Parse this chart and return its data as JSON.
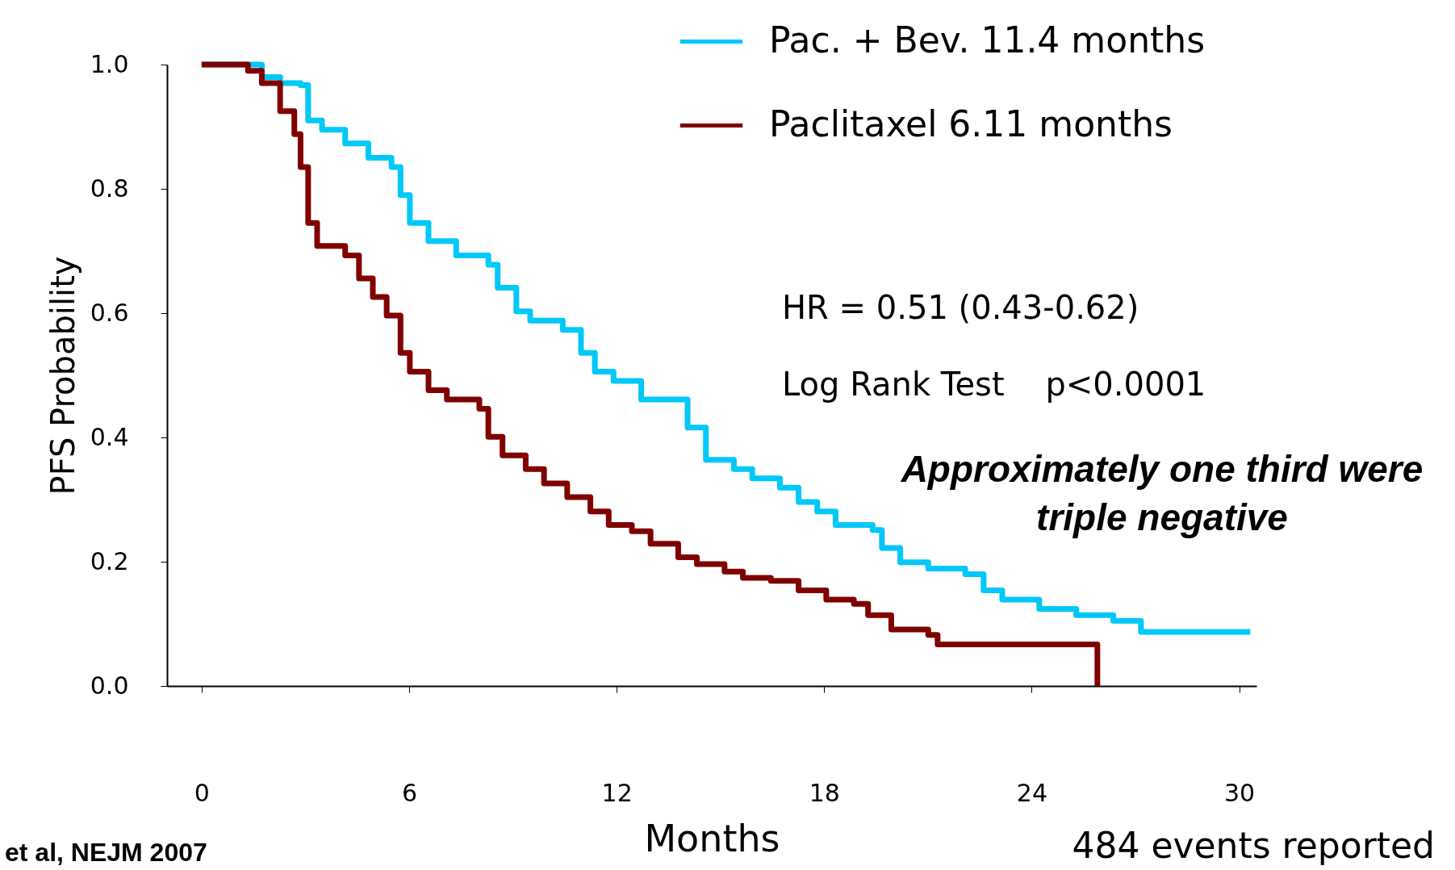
{
  "chart_data": {
    "type": "step",
    "xlabel": "Months",
    "ylabel": "PFS Probability",
    "xlim": [
      -1,
      30.5
    ],
    "xticks": [
      0,
      6,
      12,
      18,
      24,
      30
    ],
    "ylim": [
      0,
      1
    ],
    "yticks": [
      {
        "value": 0,
        "label": "0.0"
      },
      {
        "value": 0.2,
        "label": "0.2"
      },
      {
        "value": 0.4,
        "label": "0.4"
      },
      {
        "value": 0.6,
        "label": "0.6"
      },
      {
        "value": 0.8,
        "label": "0.8"
      },
      {
        "value": 1,
        "label": "1.0"
      }
    ],
    "grid": false,
    "legend": "top right",
    "marker": "none",
    "line_style": "solid",
    "series": [
      {
        "name": "Pac. + Bev.  11.4 months",
        "color": "#00c8f8",
        "x": [
          0,
          1.74,
          2.27,
          2.86,
          3.08,
          3.48,
          4.15,
          4.82,
          5.49,
          5.75,
          6.02,
          6.56,
          7.36,
          8.29,
          8.56,
          9.1,
          9.5,
          10.44,
          10.97,
          11.37,
          11.91,
          12.71,
          13.65,
          14.05,
          14.58,
          15.39,
          15.92,
          16.72,
          17.26,
          17.8,
          18.33,
          19.4,
          19.67,
          20.2,
          21.01,
          22.08,
          22.61,
          23.15,
          24.22,
          25.29,
          26.36,
          27.16,
          30.32
        ],
        "values": [
          1,
          0.98,
          0.97,
          0.967,
          0.91,
          0.895,
          0.873,
          0.85,
          0.835,
          0.79,
          0.745,
          0.716,
          0.693,
          0.678,
          0.641,
          0.603,
          0.588,
          0.573,
          0.536,
          0.506,
          0.491,
          0.461,
          0.461,
          0.416,
          0.364,
          0.349,
          0.334,
          0.319,
          0.296,
          0.281,
          0.259,
          0.251,
          0.222,
          0.199,
          0.189,
          0.18,
          0.154,
          0.139,
          0.124,
          0.114,
          0.105,
          0.087,
          0.087
        ]
      },
      {
        "name": "Paclitaxel     6.11 months",
        "color": "#800000",
        "x": [
          0,
          1.34,
          1.74,
          2.27,
          2.68,
          2.86,
          3.08,
          3.34,
          4.15,
          4.55,
          4.95,
          5.35,
          5.75,
          6.02,
          6.56,
          7.09,
          8.03,
          8.29,
          8.7,
          9.37,
          9.9,
          10.57,
          11.24,
          11.77,
          12.44,
          12.98,
          13.78,
          14.32,
          15.12,
          15.65,
          16.46,
          17.26,
          18.06,
          18.86,
          19.27,
          19.94,
          21.01,
          21.28,
          25.9,
          25.9
        ],
        "values": [
          1,
          0.99,
          0.97,
          0.925,
          0.888,
          0.835,
          0.745,
          0.708,
          0.693,
          0.656,
          0.626,
          0.596,
          0.536,
          0.506,
          0.476,
          0.461,
          0.446,
          0.401,
          0.371,
          0.349,
          0.326,
          0.304,
          0.281,
          0.259,
          0.249,
          0.229,
          0.207,
          0.196,
          0.184,
          0.174,
          0.169,
          0.154,
          0.139,
          0.132,
          0.114,
          0.091,
          0.082,
          0.067,
          0.067,
          0
        ]
      }
    ],
    "annotations": [
      "HR = 0.51 (0.43-0.62)",
      "Log Rank Test    p<0.0001",
      "Approximately one third were triple negative",
      "et al, NEJM 2007",
      "484 events reported"
    ]
  }
}
